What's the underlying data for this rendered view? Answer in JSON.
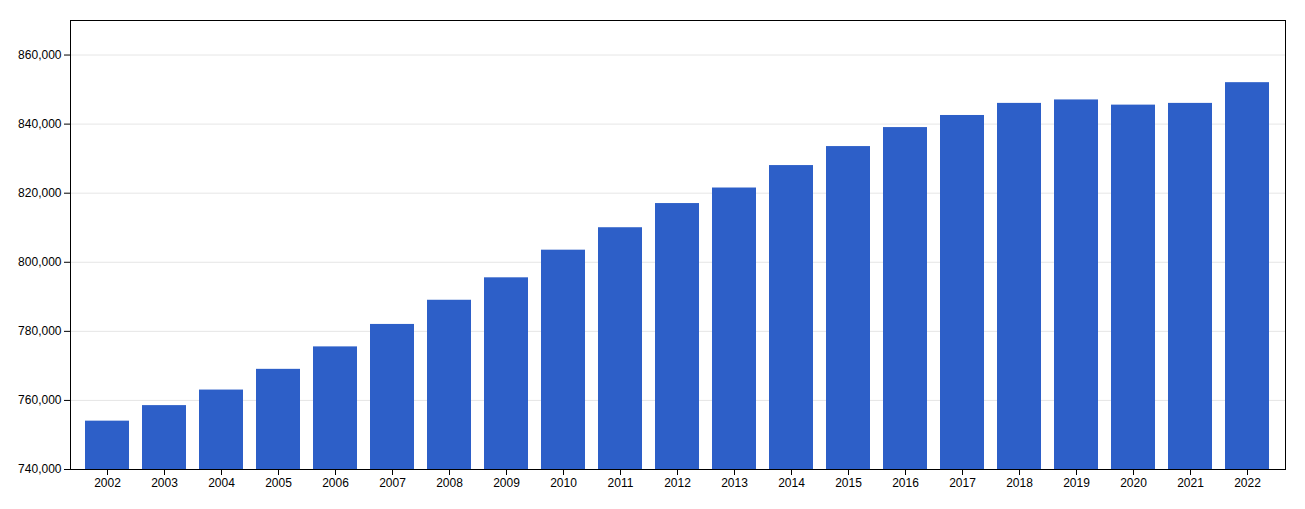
{
  "chart_data": {
    "type": "bar",
    "categories": [
      "2002",
      "2003",
      "2004",
      "2005",
      "2006",
      "2007",
      "2008",
      "2009",
      "2010",
      "2011",
      "2012",
      "2013",
      "2014",
      "2015",
      "2016",
      "2017",
      "2018",
      "2019",
      "2020",
      "2021",
      "2022"
    ],
    "values": [
      754000,
      758500,
      763000,
      769000,
      775500,
      782000,
      789000,
      795500,
      803500,
      810000,
      817000,
      821500,
      828000,
      833500,
      839000,
      842500,
      846000,
      847000,
      845500,
      846000,
      852000
    ],
    "color": "#2d5fc8",
    "ylim": [
      740000,
      870000
    ],
    "yticks": [
      {
        "value": 740000,
        "label": "740,000"
      },
      {
        "value": 760000,
        "label": "760,000"
      },
      {
        "value": 780000,
        "label": "780,000"
      },
      {
        "value": 800000,
        "label": "800,000"
      },
      {
        "value": 820000,
        "label": "820,000"
      },
      {
        "value": 840000,
        "label": "840,000"
      },
      {
        "value": 860000,
        "label": "860,000"
      }
    ],
    "grid": true
  }
}
